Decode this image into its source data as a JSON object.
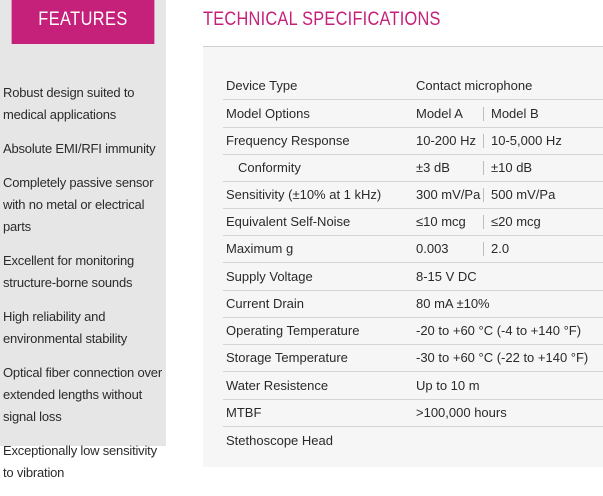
{
  "features": {
    "title": "FEATURES",
    "items": [
      "Robust design suited to medical applications",
      "Absolute EMI/RFI immunity",
      "Completely passive sensor with no metal or electrical parts",
      "Excellent for monitoring structure-borne sounds",
      "High reliability and environmental stability",
      "Optical fiber connection over extended lengths without signal loss",
      "Exceptionally low sensitivity to vibration"
    ]
  },
  "specs": {
    "title": "TECHNICAL SPECIFICATIONS",
    "rows": [
      {
        "label": "Device Type",
        "value": "Contact microphone"
      },
      {
        "label": "Model Options",
        "value": "Model A",
        "value2": "Model B"
      },
      {
        "label": "Frequency Response",
        "value": "10-200 Hz",
        "value2": "10-5,000 Hz"
      },
      {
        "label": "Conformity",
        "value": "±3 dB",
        "value2": "±10 dB"
      },
      {
        "label": "Sensitivity (±10% at 1 kHz)",
        "value": "300 mV/Pa",
        "value2": "500 mV/Pa"
      },
      {
        "label": "Equivalent Self-Noise",
        "value": "≤10 mcg",
        "value2": "≤20 mcg"
      },
      {
        "label": "Maximum g",
        "value": "0.003",
        "value2": "2.0"
      },
      {
        "label": "Supply Voltage",
        "value": "8-15 V DC"
      },
      {
        "label": "Current Drain",
        "value": "80 mA ±10%"
      },
      {
        "label": "Operating Temperature",
        "value": "-20 to +60 °C (-4 to +140 °F)"
      },
      {
        "label": "Storage Temperature",
        "value": "-30 to +60 °C (-22 to +140 °F)"
      },
      {
        "label": "Water Resistence",
        "value": "Up to 10 m"
      },
      {
        "label": "MTBF",
        "value": ">100,000 hours"
      },
      {
        "label": "Stethoscope Head",
        "value": ""
      }
    ]
  }
}
